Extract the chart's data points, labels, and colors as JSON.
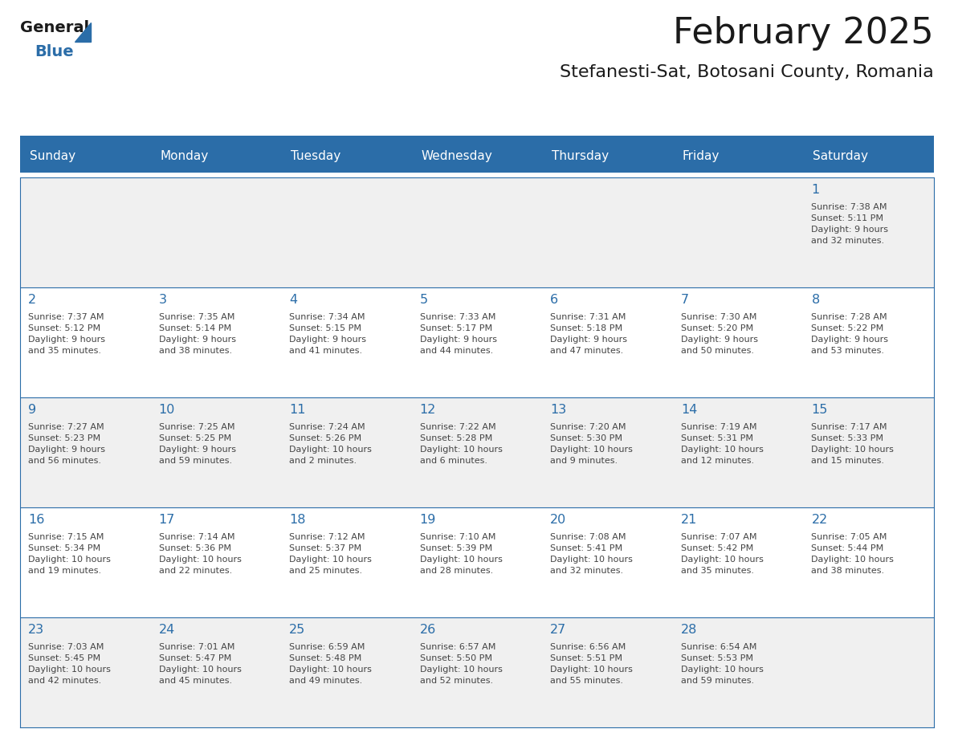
{
  "title": "February 2025",
  "subtitle": "Stefanesti-Sat, Botosani County, Romania",
  "header_bg": "#2B6DA8",
  "header_text": "#FFFFFF",
  "day_names": [
    "Sunday",
    "Monday",
    "Tuesday",
    "Wednesday",
    "Thursday",
    "Friday",
    "Saturday"
  ],
  "row_bg_odd": "#F0F0F0",
  "row_bg_even": "#FFFFFF",
  "cell_text_color": "#444444",
  "day_number_color": "#2B6DA8",
  "grid_color": "#2B6DA8",
  "title_color": "#1A1A1A",
  "subtitle_color": "#1A1A1A",
  "logo_general_color": "#1A1A1A",
  "logo_blue_color": "#2B6DA8",
  "calendar": [
    [
      {
        "day": null,
        "text": ""
      },
      {
        "day": null,
        "text": ""
      },
      {
        "day": null,
        "text": ""
      },
      {
        "day": null,
        "text": ""
      },
      {
        "day": null,
        "text": ""
      },
      {
        "day": null,
        "text": ""
      },
      {
        "day": 1,
        "text": "Sunrise: 7:38 AM\nSunset: 5:11 PM\nDaylight: 9 hours\nand 32 minutes."
      }
    ],
    [
      {
        "day": 2,
        "text": "Sunrise: 7:37 AM\nSunset: 5:12 PM\nDaylight: 9 hours\nand 35 minutes."
      },
      {
        "day": 3,
        "text": "Sunrise: 7:35 AM\nSunset: 5:14 PM\nDaylight: 9 hours\nand 38 minutes."
      },
      {
        "day": 4,
        "text": "Sunrise: 7:34 AM\nSunset: 5:15 PM\nDaylight: 9 hours\nand 41 minutes."
      },
      {
        "day": 5,
        "text": "Sunrise: 7:33 AM\nSunset: 5:17 PM\nDaylight: 9 hours\nand 44 minutes."
      },
      {
        "day": 6,
        "text": "Sunrise: 7:31 AM\nSunset: 5:18 PM\nDaylight: 9 hours\nand 47 minutes."
      },
      {
        "day": 7,
        "text": "Sunrise: 7:30 AM\nSunset: 5:20 PM\nDaylight: 9 hours\nand 50 minutes."
      },
      {
        "day": 8,
        "text": "Sunrise: 7:28 AM\nSunset: 5:22 PM\nDaylight: 9 hours\nand 53 minutes."
      }
    ],
    [
      {
        "day": 9,
        "text": "Sunrise: 7:27 AM\nSunset: 5:23 PM\nDaylight: 9 hours\nand 56 minutes."
      },
      {
        "day": 10,
        "text": "Sunrise: 7:25 AM\nSunset: 5:25 PM\nDaylight: 9 hours\nand 59 minutes."
      },
      {
        "day": 11,
        "text": "Sunrise: 7:24 AM\nSunset: 5:26 PM\nDaylight: 10 hours\nand 2 minutes."
      },
      {
        "day": 12,
        "text": "Sunrise: 7:22 AM\nSunset: 5:28 PM\nDaylight: 10 hours\nand 6 minutes."
      },
      {
        "day": 13,
        "text": "Sunrise: 7:20 AM\nSunset: 5:30 PM\nDaylight: 10 hours\nand 9 minutes."
      },
      {
        "day": 14,
        "text": "Sunrise: 7:19 AM\nSunset: 5:31 PM\nDaylight: 10 hours\nand 12 minutes."
      },
      {
        "day": 15,
        "text": "Sunrise: 7:17 AM\nSunset: 5:33 PM\nDaylight: 10 hours\nand 15 minutes."
      }
    ],
    [
      {
        "day": 16,
        "text": "Sunrise: 7:15 AM\nSunset: 5:34 PM\nDaylight: 10 hours\nand 19 minutes."
      },
      {
        "day": 17,
        "text": "Sunrise: 7:14 AM\nSunset: 5:36 PM\nDaylight: 10 hours\nand 22 minutes."
      },
      {
        "day": 18,
        "text": "Sunrise: 7:12 AM\nSunset: 5:37 PM\nDaylight: 10 hours\nand 25 minutes."
      },
      {
        "day": 19,
        "text": "Sunrise: 7:10 AM\nSunset: 5:39 PM\nDaylight: 10 hours\nand 28 minutes."
      },
      {
        "day": 20,
        "text": "Sunrise: 7:08 AM\nSunset: 5:41 PM\nDaylight: 10 hours\nand 32 minutes."
      },
      {
        "day": 21,
        "text": "Sunrise: 7:07 AM\nSunset: 5:42 PM\nDaylight: 10 hours\nand 35 minutes."
      },
      {
        "day": 22,
        "text": "Sunrise: 7:05 AM\nSunset: 5:44 PM\nDaylight: 10 hours\nand 38 minutes."
      }
    ],
    [
      {
        "day": 23,
        "text": "Sunrise: 7:03 AM\nSunset: 5:45 PM\nDaylight: 10 hours\nand 42 minutes."
      },
      {
        "day": 24,
        "text": "Sunrise: 7:01 AM\nSunset: 5:47 PM\nDaylight: 10 hours\nand 45 minutes."
      },
      {
        "day": 25,
        "text": "Sunrise: 6:59 AM\nSunset: 5:48 PM\nDaylight: 10 hours\nand 49 minutes."
      },
      {
        "day": 26,
        "text": "Sunrise: 6:57 AM\nSunset: 5:50 PM\nDaylight: 10 hours\nand 52 minutes."
      },
      {
        "day": 27,
        "text": "Sunrise: 6:56 AM\nSunset: 5:51 PM\nDaylight: 10 hours\nand 55 minutes."
      },
      {
        "day": 28,
        "text": "Sunrise: 6:54 AM\nSunset: 5:53 PM\nDaylight: 10 hours\nand 59 minutes."
      },
      {
        "day": null,
        "text": ""
      }
    ]
  ]
}
